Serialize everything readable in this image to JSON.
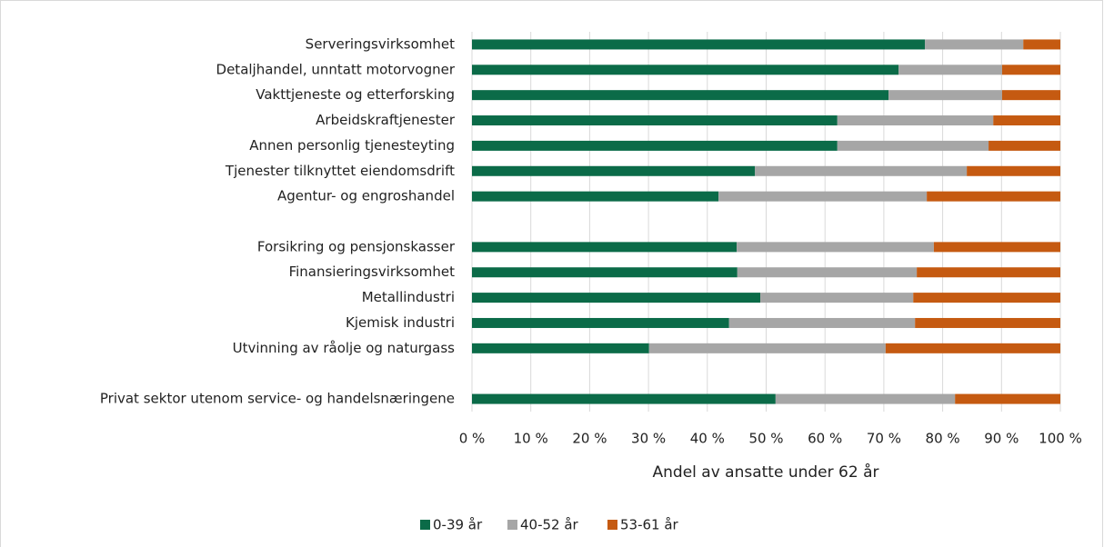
{
  "chart_data": {
    "type": "stacked_bar_horizontal",
    "x_label": "Andel av ansatte under 62 år",
    "categories": [
      "Serveringsvirksomhet",
      "Detaljhandel, unntatt motorvogner",
      "Vakttjeneste og etterforsking",
      "Arbeidskraftjenester",
      "Annen personlig tjenesteyting",
      "Tjenester tilknyttet eiendomsdrift",
      "Agentur- og engroshandel",
      null,
      "Forsikring og pensjonskasser",
      "Finansieringsvirksomhet",
      "Metallindustri",
      "Kjemisk industri",
      "Utvinning av råolje og naturgass",
      null,
      "Privat sektor utenom service- og handelsnæringene"
    ],
    "series": [
      {
        "name": "0-39 år",
        "color": "#0b6b48",
        "values": [
          77.0,
          72.5,
          70.8,
          62.1,
          62.1,
          48.1,
          41.9,
          null,
          45.0,
          45.1,
          49.0,
          43.7,
          30.1,
          null,
          51.6
        ]
      },
      {
        "name": "40-52 år",
        "color": "#a6a6a6",
        "values": [
          16.7,
          17.6,
          19.3,
          26.5,
          25.7,
          36.0,
          35.4,
          null,
          33.5,
          30.5,
          26.0,
          31.6,
          40.2,
          null,
          30.5
        ]
      },
      {
        "name": "53-61 år",
        "color": "#c55a11",
        "values": [
          6.3,
          9.9,
          9.9,
          11.4,
          12.2,
          15.9,
          22.7,
          null,
          21.5,
          24.4,
          25.0,
          24.7,
          29.7,
          null,
          17.9
        ]
      }
    ],
    "xlim": [
      0,
      100
    ],
    "xticks": [
      {
        "value": 0,
        "label": "0 %"
      },
      {
        "value": 10,
        "label": "10 %"
      },
      {
        "value": 20,
        "label": "20 %"
      },
      {
        "value": 30,
        "label": "30 %"
      },
      {
        "value": 40,
        "label": "40 %"
      },
      {
        "value": 50,
        "label": "50 %"
      },
      {
        "value": 60,
        "label": "60 %"
      },
      {
        "value": 70,
        "label": "70 %"
      },
      {
        "value": 80,
        "label": "80 %"
      },
      {
        "value": 90,
        "label": "90 %"
      },
      {
        "value": 100,
        "label": "100 %"
      }
    ],
    "grid": true,
    "legend": "bottom"
  }
}
